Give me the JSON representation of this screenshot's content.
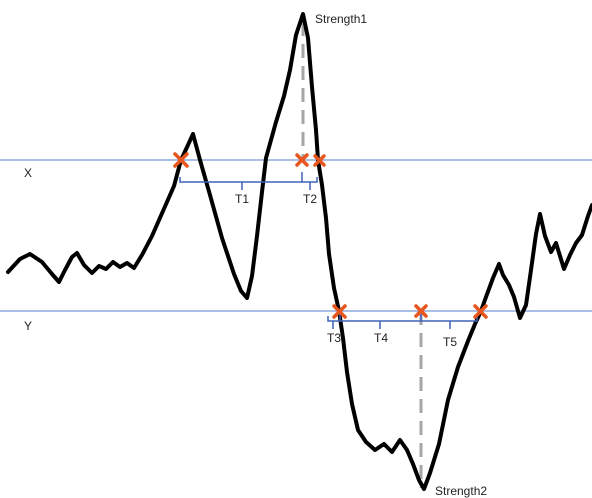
{
  "labels": {
    "line_x": "X",
    "line_y": "Y",
    "peak": "Strength1",
    "trough": "Strength2",
    "t1": "T1",
    "t2": "T2",
    "t3": "T3",
    "t4": "T4",
    "t5": "T5"
  },
  "colors": {
    "threshold_line": "#8fa9dc",
    "signal": "#000000",
    "crossing_marker": "#e8561f",
    "interval_bracket": "#3d63b8",
    "strength_dash": "#a6a6a6"
  }
}
